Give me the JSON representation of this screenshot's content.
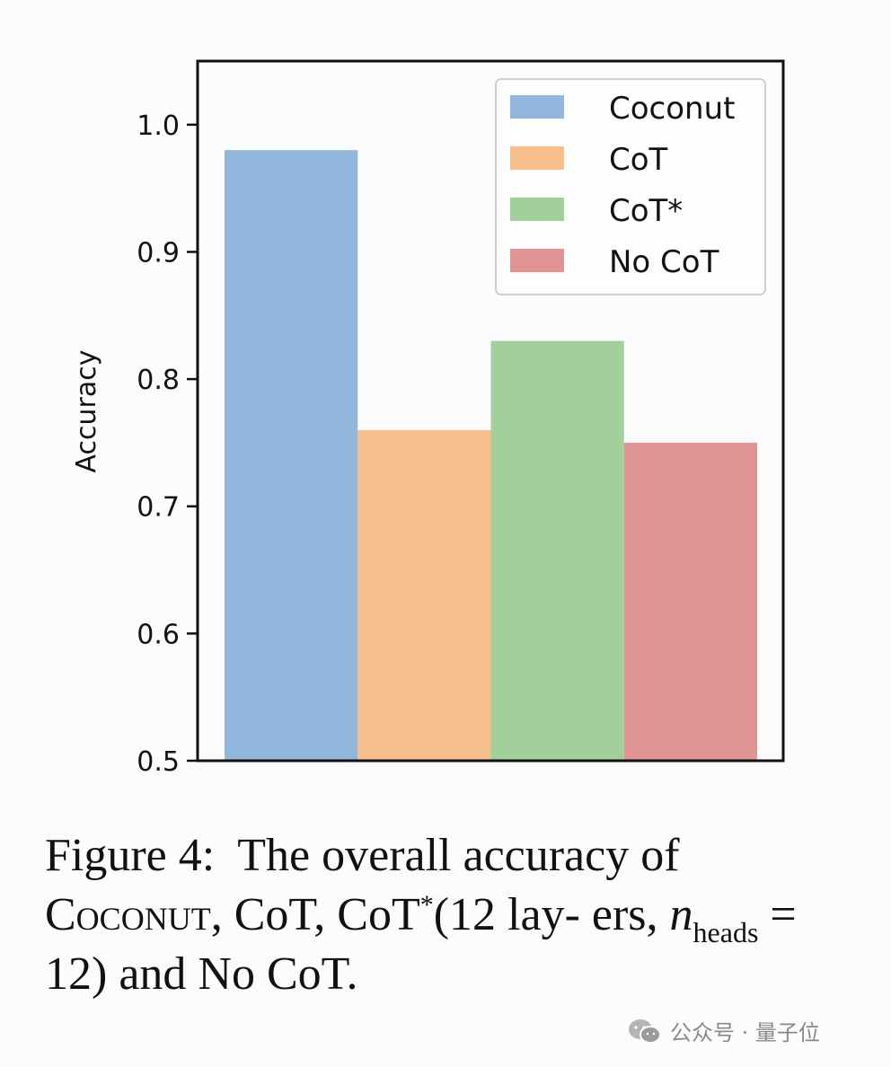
{
  "chart_data": {
    "type": "bar",
    "title": "",
    "xlabel": "",
    "ylabel": "Accuracy",
    "ylim": [
      0.5,
      1.05
    ],
    "yticks": [
      0.5,
      0.6,
      0.7,
      0.8,
      0.9,
      1.0
    ],
    "ytick_labels": [
      "0.5",
      "0.6",
      "0.7",
      "0.8",
      "0.9",
      "1.0"
    ],
    "grid": false,
    "legend_position": "top-right",
    "categories": [
      "Coconut",
      "CoT",
      "CoT*",
      "No CoT"
    ],
    "values": [
      0.98,
      0.76,
      0.83,
      0.75
    ],
    "colors": [
      "#93b6dc",
      "#f5c08d",
      "#a2d09a",
      "#e09594"
    ],
    "legend": [
      "Coconut",
      "CoT",
      "CoT*",
      "No CoT"
    ]
  },
  "caption": {
    "figure_label": "Figure 4:",
    "text_1": "The overall accuracy of",
    "method": "Coconut",
    "text_2": ", CoT, CoT",
    "star": "*",
    "text_3": "(12 lay- ers,",
    "var": "n",
    "subscript": "heads",
    "text_4": "= 12) and No CoT."
  },
  "watermark": {
    "text": "公众号 · 量子位"
  }
}
